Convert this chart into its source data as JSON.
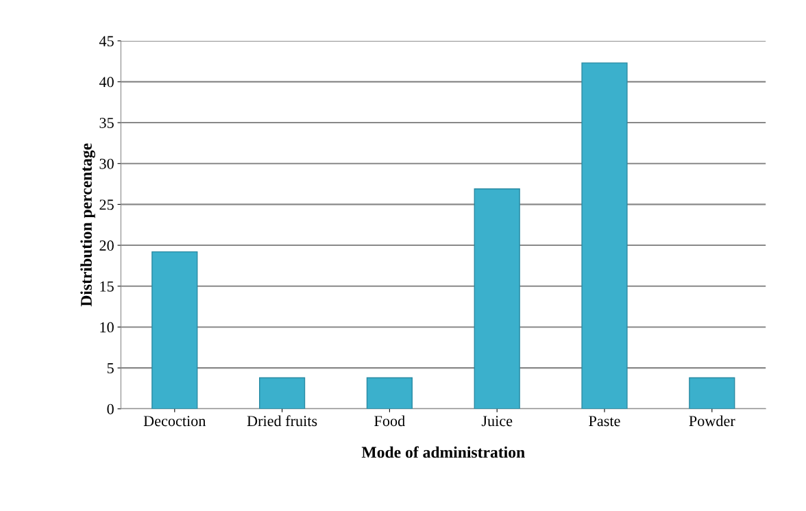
{
  "chart_data": {
    "type": "bar",
    "xlabel": "Mode of administration",
    "ylabel": "Distribution percentage",
    "categories": [
      "Decoction",
      "Dried fruits",
      "Food",
      "Juice",
      "Paste",
      "Powder"
    ],
    "values": [
      19.2,
      3.8,
      3.8,
      26.9,
      42.3,
      3.8
    ],
    "color": "#3bb0cc",
    "ylim": [
      0,
      45
    ],
    "yticks": [
      0,
      5,
      10,
      15,
      20,
      25,
      30,
      35,
      40,
      45
    ],
    "grid": "y"
  }
}
